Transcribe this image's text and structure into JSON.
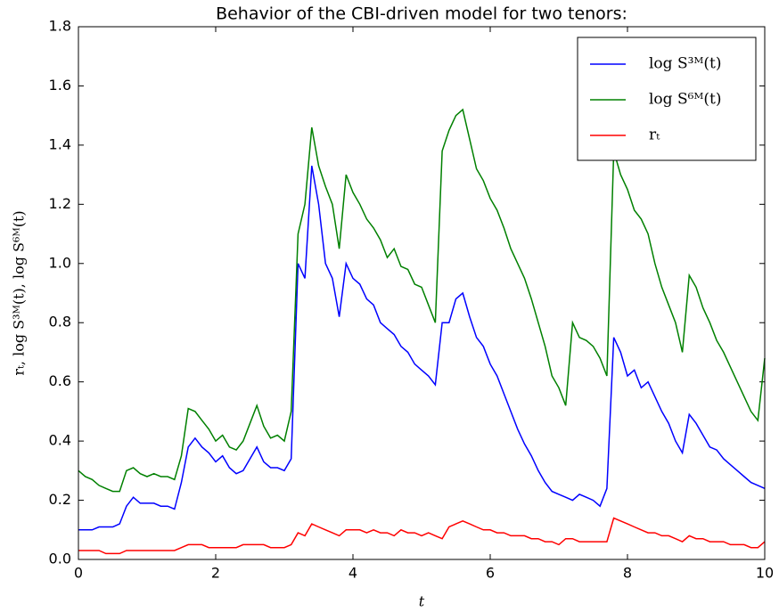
{
  "chart_data": {
    "type": "line",
    "title": "Behavior of the CBI-driven model for two tenors:",
    "xlabel": "t",
    "ylabel": "rₜ, log S³ᴹ(t), log S⁶ᴹ(t)",
    "xlim": [
      0,
      10
    ],
    "ylim": [
      0,
      1.8
    ],
    "xticks": [
      0,
      2,
      4,
      6,
      8,
      10
    ],
    "yticks": [
      {
        "value": 0,
        "label": "0.0"
      },
      0.2,
      0.4,
      0.6,
      0.8,
      {
        "value": 1,
        "label": "1.0"
      },
      1.2,
      1.4,
      1.6,
      1.8
    ],
    "grid": false,
    "legend": "upper right",
    "x": [
      0,
      0.1,
      0.2,
      0.3,
      0.4,
      0.5,
      0.6,
      0.7,
      0.8,
      0.9,
      1,
      1.1,
      1.2,
      1.3,
      1.4,
      1.5,
      1.6,
      1.7,
      1.8,
      1.9,
      2,
      2.1,
      2.2,
      2.3,
      2.4,
      2.5,
      2.6,
      2.7,
      2.8,
      2.9,
      3,
      3.1,
      3.2,
      3.3,
      3.4,
      3.5,
      3.6,
      3.7,
      3.8,
      3.9,
      4,
      4.1,
      4.2,
      4.3,
      4.4,
      4.5,
      4.6,
      4.7,
      4.8,
      4.9,
      5,
      5.1,
      5.2,
      5.3,
      5.4,
      5.5,
      5.6,
      5.7,
      5.8,
      5.9,
      6,
      6.1,
      6.2,
      6.3,
      6.4,
      6.5,
      6.6,
      6.7,
      6.8,
      6.9,
      7,
      7.1,
      7.2,
      7.3,
      7.4,
      7.5,
      7.6,
      7.7,
      7.8,
      7.9,
      8,
      8.1,
      8.2,
      8.3,
      8.4,
      8.5,
      8.6,
      8.7,
      8.8,
      8.9,
      9,
      9.1,
      9.2,
      9.3,
      9.4,
      9.5,
      9.6,
      9.7,
      9.8,
      9.9,
      10
    ],
    "series": [
      {
        "name": "log S³ᴹ(t)",
        "color": "#0000ff",
        "values": [
          0.1,
          0.1,
          0.1,
          0.11,
          0.11,
          0.11,
          0.12,
          0.18,
          0.21,
          0.19,
          0.19,
          0.19,
          0.18,
          0.18,
          0.17,
          0.26,
          0.38,
          0.41,
          0.38,
          0.36,
          0.33,
          0.35,
          0.31,
          0.29,
          0.3,
          0.34,
          0.38,
          0.33,
          0.31,
          0.31,
          0.3,
          0.34,
          1.0,
          0.95,
          1.33,
          1.2,
          1.0,
          0.95,
          0.82,
          1.0,
          0.95,
          0.93,
          0.88,
          0.86,
          0.8,
          0.78,
          0.76,
          0.72,
          0.7,
          0.66,
          0.64,
          0.62,
          0.59,
          0.8,
          0.8,
          0.88,
          0.9,
          0.82,
          0.75,
          0.72,
          0.66,
          0.62,
          0.56,
          0.5,
          0.44,
          0.39,
          0.35,
          0.3,
          0.26,
          0.23,
          0.22,
          0.21,
          0.2,
          0.22,
          0.21,
          0.2,
          0.18,
          0.24,
          0.75,
          0.7,
          0.62,
          0.64,
          0.58,
          0.6,
          0.55,
          0.5,
          0.46,
          0.4,
          0.36,
          0.49,
          0.46,
          0.42,
          0.38,
          0.37,
          0.34,
          0.32,
          0.3,
          0.28,
          0.26,
          0.25,
          0.24
        ]
      },
      {
        "name": "log S⁶ᴹ(t)",
        "color": "#008000",
        "values": [
          0.3,
          0.28,
          0.27,
          0.25,
          0.24,
          0.23,
          0.23,
          0.3,
          0.31,
          0.29,
          0.28,
          0.29,
          0.28,
          0.28,
          0.27,
          0.35,
          0.51,
          0.5,
          0.47,
          0.44,
          0.4,
          0.42,
          0.38,
          0.37,
          0.4,
          0.46,
          0.52,
          0.45,
          0.41,
          0.42,
          0.4,
          0.5,
          1.1,
          1.2,
          1.46,
          1.33,
          1.26,
          1.2,
          1.05,
          1.3,
          1.24,
          1.2,
          1.15,
          1.12,
          1.08,
          1.02,
          1.05,
          0.99,
          0.98,
          0.93,
          0.92,
          0.86,
          0.8,
          1.38,
          1.45,
          1.5,
          1.52,
          1.42,
          1.32,
          1.28,
          1.22,
          1.18,
          1.12,
          1.05,
          1.0,
          0.95,
          0.88,
          0.8,
          0.72,
          0.62,
          0.58,
          0.52,
          0.8,
          0.75,
          0.74,
          0.72,
          0.68,
          0.62,
          1.38,
          1.3,
          1.25,
          1.18,
          1.15,
          1.1,
          1.0,
          0.92,
          0.86,
          0.8,
          0.7,
          0.96,
          0.92,
          0.85,
          0.8,
          0.74,
          0.7,
          0.65,
          0.6,
          0.55,
          0.5,
          0.47,
          0.68
        ]
      },
      {
        "name": "rₜ",
        "color": "#ff0000",
        "values": [
          0.03,
          0.03,
          0.03,
          0.03,
          0.02,
          0.02,
          0.02,
          0.03,
          0.03,
          0.03,
          0.03,
          0.03,
          0.03,
          0.03,
          0.03,
          0.04,
          0.05,
          0.05,
          0.05,
          0.04,
          0.04,
          0.04,
          0.04,
          0.04,
          0.05,
          0.05,
          0.05,
          0.05,
          0.04,
          0.04,
          0.04,
          0.05,
          0.09,
          0.08,
          0.12,
          0.11,
          0.1,
          0.09,
          0.08,
          0.1,
          0.1,
          0.1,
          0.09,
          0.1,
          0.09,
          0.09,
          0.08,
          0.1,
          0.09,
          0.09,
          0.08,
          0.09,
          0.08,
          0.07,
          0.11,
          0.12,
          0.13,
          0.12,
          0.11,
          0.1,
          0.1,
          0.09,
          0.09,
          0.08,
          0.08,
          0.08,
          0.07,
          0.07,
          0.06,
          0.06,
          0.05,
          0.07,
          0.07,
          0.06,
          0.06,
          0.06,
          0.06,
          0.06,
          0.14,
          0.13,
          0.12,
          0.11,
          0.1,
          0.09,
          0.09,
          0.08,
          0.08,
          0.07,
          0.06,
          0.08,
          0.07,
          0.07,
          0.06,
          0.06,
          0.06,
          0.05,
          0.05,
          0.05,
          0.04,
          0.04,
          0.06
        ]
      }
    ]
  }
}
